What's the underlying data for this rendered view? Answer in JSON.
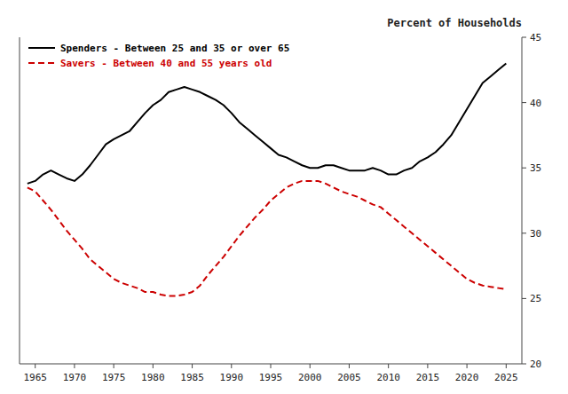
{
  "chart_data": {
    "type": "line",
    "ylabel": "Percent of Households",
    "x": [
      1964,
      1965,
      1966,
      1967,
      1968,
      1969,
      1970,
      1971,
      1972,
      1973,
      1974,
      1975,
      1976,
      1977,
      1978,
      1979,
      1980,
      1981,
      1982,
      1983,
      1984,
      1985,
      1986,
      1987,
      1988,
      1989,
      1990,
      1991,
      1992,
      1993,
      1994,
      1995,
      1996,
      1997,
      1998,
      1999,
      2000,
      2001,
      2002,
      2003,
      2004,
      2005,
      2006,
      2007,
      2008,
      2009,
      2010,
      2011,
      2012,
      2013,
      2014,
      2015,
      2016,
      2017,
      2018,
      2019,
      2020,
      2021,
      2022,
      2023,
      2024,
      2025
    ],
    "series": [
      {
        "name": "Spenders - Between 25 and 35 or over 65",
        "color": "#000000",
        "line_style": "solid",
        "values": [
          33.8,
          34.0,
          34.5,
          34.8,
          34.5,
          34.2,
          34.0,
          34.5,
          35.2,
          36.0,
          36.8,
          37.2,
          37.5,
          37.8,
          38.5,
          39.2,
          39.8,
          40.2,
          40.8,
          41.0,
          41.2,
          41.0,
          40.8,
          40.5,
          40.2,
          39.8,
          39.2,
          38.5,
          38.0,
          37.5,
          37.0,
          36.5,
          36.0,
          35.8,
          35.5,
          35.2,
          35.0,
          35.0,
          35.2,
          35.2,
          35.0,
          34.8,
          34.8,
          34.8,
          35.0,
          34.8,
          34.5,
          34.5,
          34.8,
          35.0,
          35.5,
          35.8,
          36.2,
          36.8,
          37.5,
          38.5,
          39.5,
          40.5,
          41.5,
          42.0,
          42.5,
          43.0
        ]
      },
      {
        "name": "Savers - Between 40 and 55 years old",
        "color": "#cc0000",
        "line_style": "dashed",
        "values": [
          33.5,
          33.2,
          32.5,
          31.8,
          31.0,
          30.2,
          29.5,
          28.8,
          28.0,
          27.5,
          27.0,
          26.5,
          26.2,
          26.0,
          25.8,
          25.5,
          25.5,
          25.3,
          25.2,
          25.2,
          25.3,
          25.5,
          26.0,
          26.8,
          27.5,
          28.2,
          29.0,
          29.8,
          30.5,
          31.2,
          31.8,
          32.5,
          33.0,
          33.5,
          33.8,
          34.0,
          34.0,
          34.0,
          33.8,
          33.5,
          33.2,
          33.0,
          32.8,
          32.5,
          32.2,
          32.0,
          31.5,
          31.0,
          30.5,
          30.0,
          29.5,
          29.0,
          28.5,
          28.0,
          27.5,
          27.0,
          26.5,
          26.2,
          26.0,
          25.9,
          25.8,
          25.7
        ]
      }
    ],
    "xlim": [
      1963,
      2027
    ],
    "xticks": [
      1965,
      1970,
      1975,
      1980,
      1985,
      1990,
      1995,
      2000,
      2005,
      2010,
      2015,
      2020,
      2025
    ],
    "ylim": [
      20,
      45
    ],
    "yticks": [
      20,
      25,
      30,
      35,
      40,
      45
    ],
    "legend": "upper left",
    "grid": false
  }
}
